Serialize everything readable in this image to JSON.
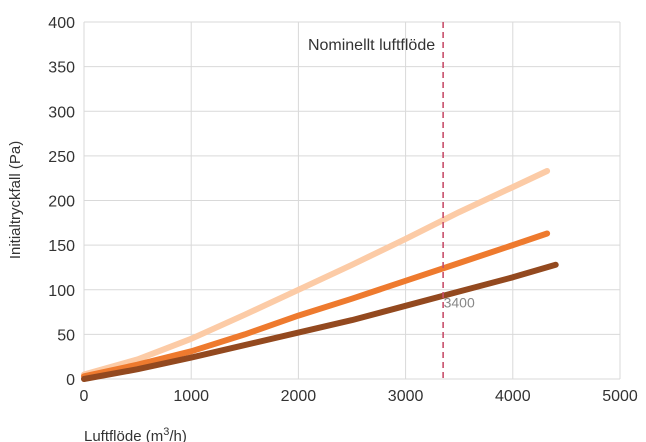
{
  "chart_data": {
    "type": "line",
    "title": "",
    "xlabel": "Luftflöde (m³/h)",
    "xlabel_parts": [
      "Luftflöde (m",
      "3",
      "/h)"
    ],
    "ylabel": "Initialtryckfall (Pa)",
    "xlim": [
      0,
      5000
    ],
    "ylim": [
      0,
      400
    ],
    "xticks": [
      0,
      1000,
      2000,
      3000,
      4000,
      5000
    ],
    "yticks": [
      0,
      50,
      100,
      150,
      200,
      250,
      300,
      350,
      400
    ],
    "xtick_labels": [
      "0",
      "1000",
      "2000",
      "3000",
      "4000",
      "5000"
    ],
    "ytick_labels": [
      "0",
      "50",
      "100",
      "150",
      "200",
      "250",
      "300",
      "350",
      "400"
    ],
    "grid": true,
    "series": [
      {
        "color": "#FCCBA6",
        "x": [
          0,
          500,
          1000,
          1500,
          2000,
          2500,
          3000,
          3500,
          4000,
          4320
        ],
        "y": [
          5,
          22,
          45,
          72,
          100,
          128,
          157,
          187,
          215,
          233
        ]
      },
      {
        "color": "#EE7A2E",
        "x": [
          0,
          500,
          1000,
          1500,
          2000,
          2500,
          3000,
          3500,
          4000,
          4320
        ],
        "y": [
          3,
          16,
          31,
          50,
          71,
          90,
          110,
          130,
          150,
          163
        ]
      },
      {
        "color": "#93491F",
        "x": [
          0,
          500,
          1000,
          1500,
          2000,
          2500,
          3000,
          3500,
          4000,
          4400
        ],
        "y": [
          0,
          11,
          24,
          38,
          52,
          66,
          82,
          98,
          114,
          128
        ]
      }
    ],
    "annotations": [
      {
        "type": "vline",
        "x": 3350,
        "color": "#C84F6B",
        "label": "Nominellt luftflöde"
      },
      {
        "type": "text",
        "x": 3500,
        "y": 80,
        "text": "3400"
      }
    ]
  }
}
